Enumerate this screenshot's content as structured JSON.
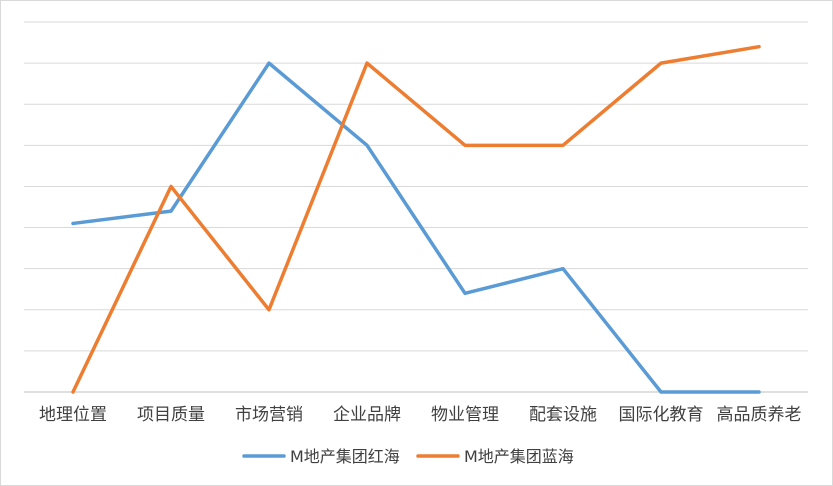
{
  "chart_data": {
    "type": "line",
    "categories": [
      "地理位置",
      "项目质量",
      "市场营销",
      "企业品牌",
      "物业管理",
      "配套设施",
      "国际化教育",
      "高品质养老"
    ],
    "series": [
      {
        "name": "M地产集团红海",
        "color": "#5B9BD5",
        "values": [
          4.1,
          4.4,
          8.0,
          6.0,
          2.4,
          3.0,
          0.0,
          0.0
        ]
      },
      {
        "name": "M地产集团蓝海",
        "color": "#ED7D31",
        "values": [
          0.0,
          5.0,
          2.0,
          8.0,
          6.0,
          6.0,
          8.0,
          8.4
        ]
      }
    ],
    "ylim": [
      0,
      9
    ],
    "grid": true,
    "legend_position": "bottom"
  }
}
